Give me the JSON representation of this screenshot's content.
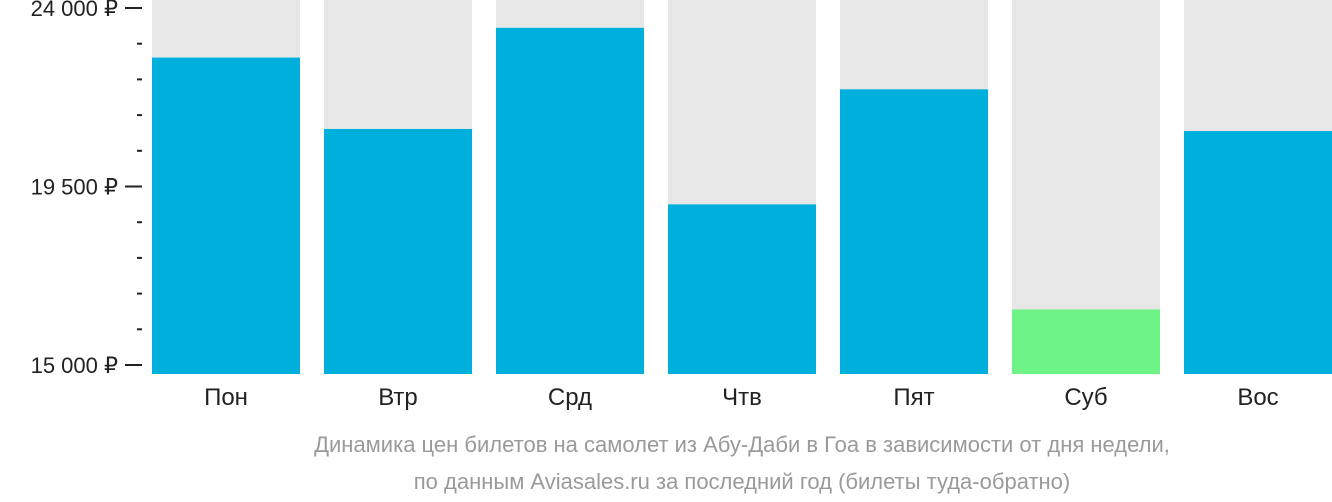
{
  "chart_data": {
    "type": "bar",
    "categories": [
      "Пон",
      "Втр",
      "Срд",
      "Чтв",
      "Пят",
      "Суб",
      "Вос"
    ],
    "values": [
      22750,
      20950,
      23500,
      19050,
      21950,
      16400,
      20900
    ],
    "ylim": [
      15000,
      24000
    ],
    "yticks": [
      {
        "value": 15000,
        "label": "15 000 ₽"
      },
      {
        "value": 19500,
        "label": "19 500 ₽"
      },
      {
        "value": 24000,
        "label": "24 000 ₽"
      }
    ],
    "minor_tick_step": 900,
    "caption": [
      "Динамика цен билетов на самолет из Абу-Даби в Гоа в зависимости от дня недели,",
      "по данным Aviasales.ru за последний год (билеты туда-обратно)"
    ],
    "colors": {
      "bar": "#00b0dc",
      "lowest_bar": "#6ef486",
      "track": "#e7e7e7",
      "axis": "#222222"
    }
  }
}
